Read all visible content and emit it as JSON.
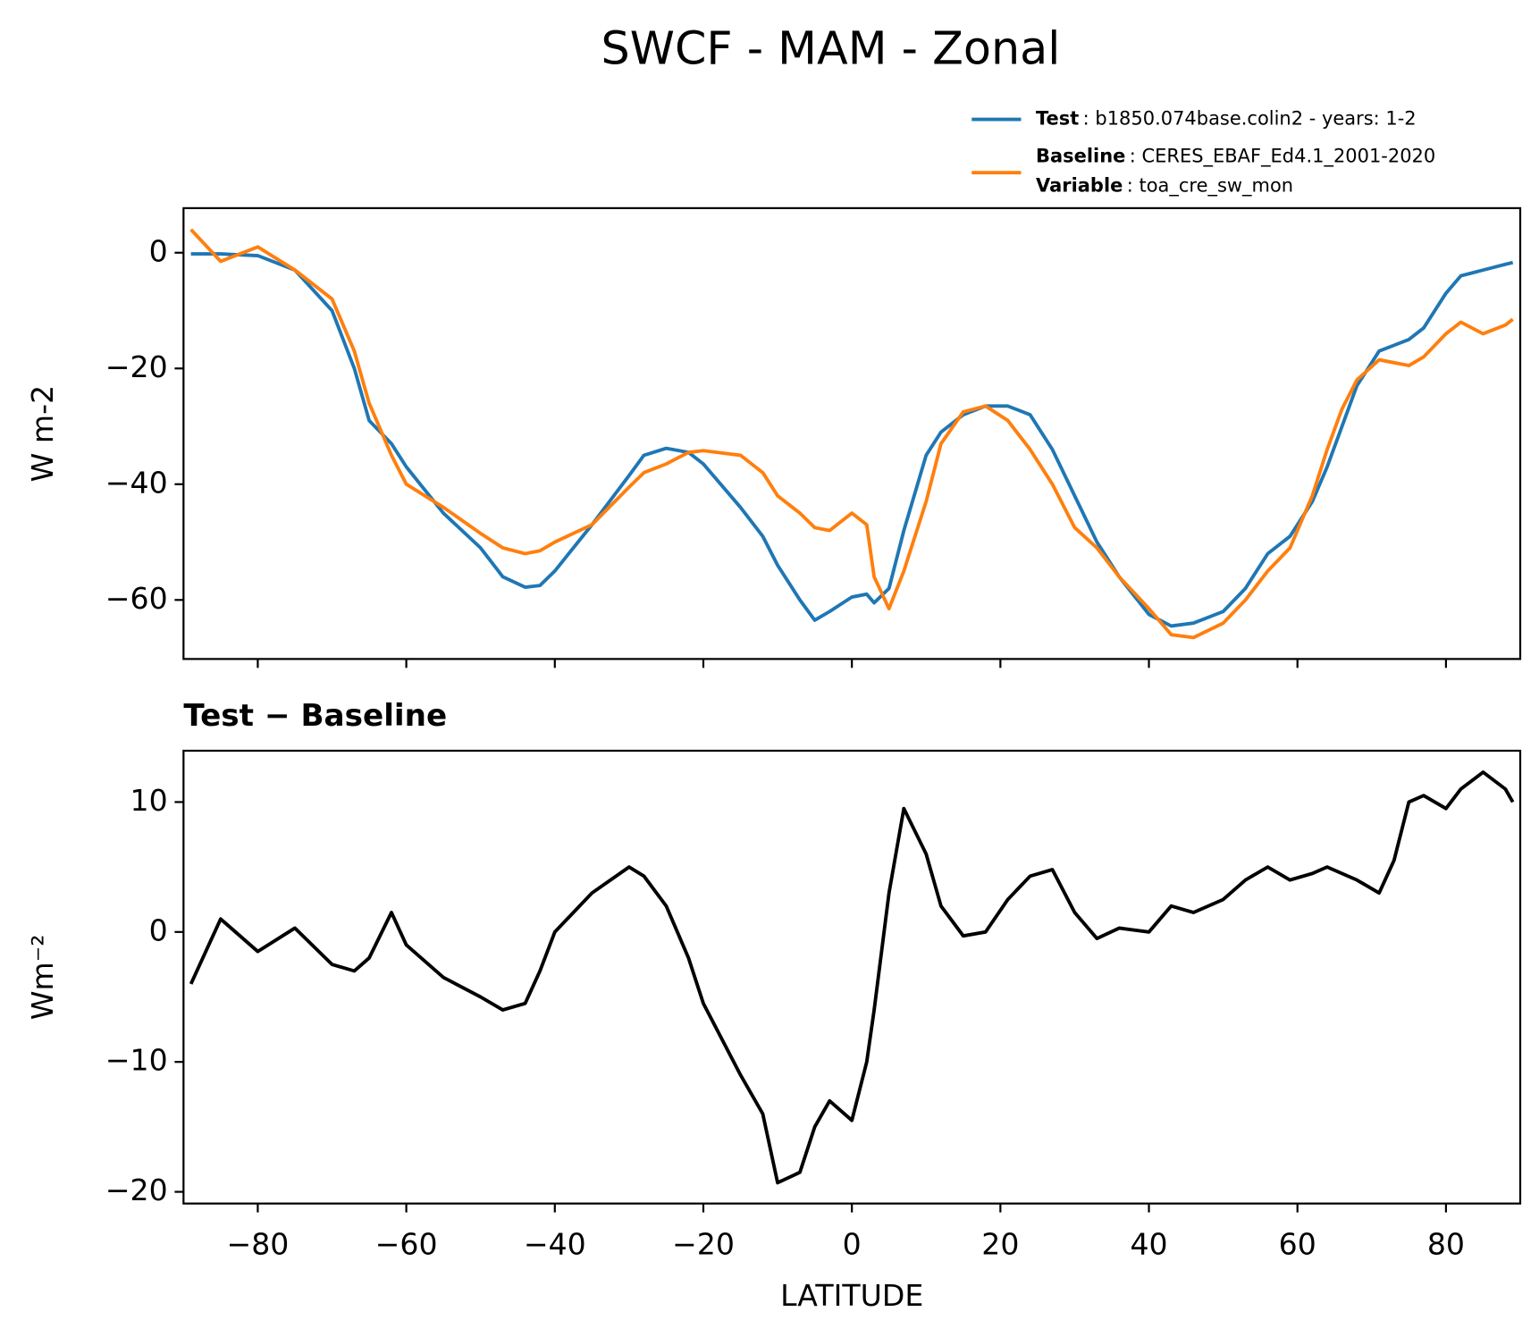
{
  "title": "SWCF - MAM - Zonal",
  "chart_data": [
    {
      "type": "line",
      "ylabel": "W m-2",
      "x": [
        -89,
        -85,
        -80,
        -75,
        -70,
        -67,
        -65,
        -62,
        -60,
        -55,
        -50,
        -47,
        -44,
        -42,
        -40,
        -35,
        -30,
        -28,
        -25,
        -22,
        -20,
        -15,
        -12,
        -10,
        -7,
        -5,
        -3,
        0,
        2,
        3,
        5,
        7,
        10,
        12,
        15,
        18,
        21,
        24,
        27,
        30,
        33,
        36,
        40,
        43,
        46,
        50,
        53,
        56,
        59,
        62,
        64,
        66,
        68,
        71,
        73,
        75,
        77,
        80,
        82,
        85,
        88,
        89
      ],
      "series": [
        {
          "name": "Test",
          "description": ": b1850.074base.colin2 - years: 1-2",
          "color": "#1f77b4",
          "values": [
            -0.2,
            -0.2,
            -0.5,
            -3,
            -10,
            -20,
            -29,
            -33,
            -37,
            -45,
            -51,
            -56,
            -57.8,
            -57.5,
            -55,
            -47,
            -38.5,
            -35,
            -33.8,
            -34.5,
            -36.5,
            -44,
            -49,
            -54,
            -60,
            -63.5,
            -62,
            -59.5,
            -59,
            -60.5,
            -58,
            -48,
            -35,
            -31,
            -28,
            -26.5,
            -26.5,
            -28,
            -34,
            -42,
            -50,
            -56,
            -62.5,
            -64.5,
            -64,
            -62,
            -58,
            -52,
            -49,
            -43,
            -37,
            -30,
            -23,
            -17,
            -16,
            -15,
            -13,
            -7,
            -4,
            -3,
            -2,
            -1.7
          ]
        },
        {
          "name": "Baseline",
          "description": ": CERES_EBAF_Ed4.1_2001-2020",
          "color": "#ff7f0e",
          "values": [
            4,
            -1.5,
            1,
            -3,
            -8,
            -17,
            -26,
            -35,
            -40,
            -44,
            -48.5,
            -51,
            -52,
            -51.5,
            -50,
            -47,
            -40.5,
            -38,
            -36.5,
            -34.5,
            -34.2,
            -35,
            -38,
            -42,
            -45,
            -47.5,
            -48,
            -45,
            -47,
            -56,
            -61.5,
            -55,
            -43,
            -33,
            -27.5,
            -26.5,
            -29,
            -34,
            -40,
            -47.5,
            -51,
            -56,
            -61.5,
            -66,
            -66.5,
            -64,
            -60,
            -55,
            -51,
            -42,
            -34,
            -27,
            -22,
            -18.5,
            -19,
            -19.5,
            -18,
            -14,
            -12,
            -14,
            -12.5,
            -11.5
          ]
        }
      ],
      "variable": {
        "name": "Variable",
        "description": ": toa_cre_sw_mon"
      },
      "xlim": [
        -90,
        90
      ],
      "xticks": [
        -80,
        -60,
        -40,
        -20,
        0,
        20,
        40,
        60,
        80
      ],
      "xticklabels": false,
      "ylim": [
        -70.2,
        7.7
      ],
      "yticks": [
        0,
        {
          "value": -20,
          "label": "−20"
        },
        {
          "value": -40,
          "label": "−40"
        },
        {
          "value": -60,
          "label": "−60"
        }
      ]
    },
    {
      "type": "line",
      "title": "Test − Baseline",
      "ylabel": "Wm⁻²",
      "xlabel": "LATITUDE",
      "x": [
        -89,
        -85,
        -80,
        -75,
        -70,
        -67,
        -65,
        -62,
        -60,
        -55,
        -50,
        -47,
        -44,
        -42,
        -40,
        -35,
        -30,
        -28,
        -25,
        -22,
        -20,
        -15,
        -12,
        -10,
        -7,
        -5,
        -3,
        0,
        2,
        3,
        5,
        7,
        10,
        12,
        15,
        18,
        21,
        24,
        27,
        30,
        33,
        36,
        40,
        43,
        46,
        50,
        53,
        56,
        59,
        62,
        64,
        66,
        68,
        71,
        73,
        75,
        77,
        80,
        82,
        85,
        88,
        89
      ],
      "series": [
        {
          "color": "#000000",
          "values": [
            -4,
            1,
            -1.5,
            0.3,
            -2.5,
            -3,
            -2,
            1.5,
            -1,
            -3.5,
            -5,
            -6,
            -5.5,
            -3,
            0,
            3,
            5,
            4.3,
            2,
            -2,
            -5.5,
            -11,
            -14,
            -19.3,
            -18.5,
            -15,
            -13,
            -14.5,
            -10,
            -6,
            3,
            9.5,
            6,
            2,
            -0.3,
            0,
            2.5,
            4.3,
            4.8,
            1.5,
            -0.5,
            0.3,
            0,
            2,
            1.5,
            2.5,
            4,
            5,
            4,
            4.5,
            5,
            4.5,
            4,
            3,
            5.5,
            10,
            10.5,
            9.5,
            11,
            12.3,
            11,
            10
          ]
        }
      ],
      "xlim": [
        -90,
        90
      ],
      "xticks": [
        {
          "value": -80,
          "label": "−80"
        },
        {
          "value": -60,
          "label": "−60"
        },
        {
          "value": -40,
          "label": "−40"
        },
        {
          "value": -20,
          "label": "−20"
        },
        0,
        20,
        40,
        60,
        80
      ],
      "xticklabels": true,
      "ylim": [
        -20.9,
        13.95
      ],
      "yticks": [
        10,
        0,
        {
          "value": -10,
          "label": "−10"
        },
        {
          "value": -20,
          "label": "−20"
        }
      ]
    }
  ]
}
